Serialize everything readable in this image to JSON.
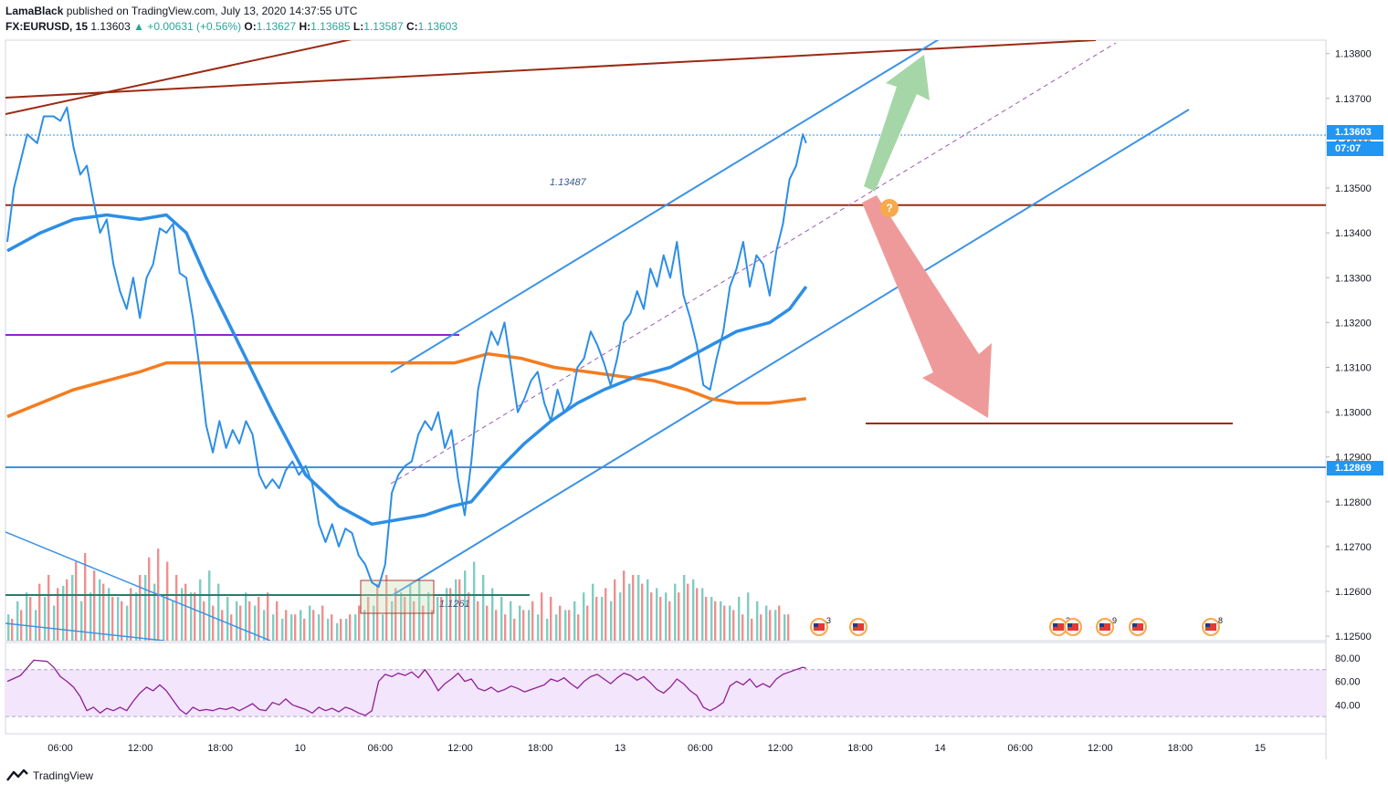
{
  "header": {
    "author": "LamaBlack",
    "published_text": " published on TradingView.com, July 13, 2020 14:37:55 UTC",
    "symbol": "FX:EURUSD, 15",
    "last": "1.13603",
    "change": "▲ +0.00631 (+0.56%)",
    "o_label": "O:",
    "o": "1.13627",
    "h_label": "H:",
    "h": "1.13685",
    "l_label": "L:",
    "l": "1.13587",
    "c_label": "C:",
    "c": "1.13603"
  },
  "footer": {
    "brand": "TradingView",
    "logo_icon": "tradingview-logo-icon"
  },
  "colors": {
    "price_line": "#2d8ee6",
    "ma_fast": "#2d8ee6",
    "ma_slow": "#f57c1f",
    "resistance": "#9c2a12",
    "channel": "#3d93e5",
    "purple_level": "#8e24d9",
    "vol_up": "#7fcdc2",
    "vol_down": "#f08f8f",
    "rsi_line": "#8e1f96",
    "rsi_band": "#f3e5fc",
    "up_arrow": "#a5d6a7",
    "down_arrow": "#ef9a9a",
    "last_badge": "#2196f3"
  },
  "chart_data": {
    "type": "line",
    "symbol": "EURUSD",
    "timeframe": "15",
    "y_ticks": [
      "1.13800",
      "1.13700",
      "1.13600",
      "1.13500",
      "1.13400",
      "1.13300",
      "1.13200",
      "1.13100",
      "1.13000",
      "1.12900",
      "1.12800",
      "1.12700",
      "1.12600",
      "1.12500"
    ],
    "ylim": [
      1.1249,
      1.1383
    ],
    "x_ticks": [
      "06:00",
      "12:00",
      "18:00",
      "10",
      "06:00",
      "12:00",
      "18:00",
      "13",
      "06:00",
      "12:00",
      "18:00",
      "14",
      "06:00",
      "12:00",
      "18:00",
      "15"
    ],
    "price_labels": {
      "last": "1.13603",
      "countdown": "07:07",
      "level": "1.12869",
      "resistance_label": "1.13487",
      "low_label": "1.1261"
    },
    "price_series": [
      [
        0,
        1.1338
      ],
      [
        2,
        1.135
      ],
      [
        4,
        1.1356
      ],
      [
        6,
        1.1362
      ],
      [
        9,
        1.136
      ],
      [
        11,
        1.1366
      ],
      [
        14,
        1.1366
      ],
      [
        16,
        1.1365
      ],
      [
        18,
        1.1368
      ],
      [
        20,
        1.1359
      ],
      [
        22,
        1.1353
      ],
      [
        24,
        1.1355
      ],
      [
        26,
        1.1347
      ],
      [
        28,
        1.134
      ],
      [
        30,
        1.1343
      ],
      [
        32,
        1.1333
      ],
      [
        34,
        1.1327
      ],
      [
        36,
        1.1323
      ],
      [
        38,
        1.133
      ],
      [
        40,
        1.1321
      ],
      [
        42,
        1.133
      ],
      [
        44,
        1.1333
      ],
      [
        46,
        1.1341
      ],
      [
        48,
        1.134
      ],
      [
        50,
        1.1342
      ],
      [
        52,
        1.1331
      ],
      [
        54,
        1.133
      ],
      [
        56,
        1.1321
      ],
      [
        58,
        1.131
      ],
      [
        60,
        1.1297
      ],
      [
        62,
        1.1291
      ],
      [
        64,
        1.1298
      ],
      [
        66,
        1.1292
      ],
      [
        68,
        1.1296
      ],
      [
        70,
        1.1293
      ],
      [
        72,
        1.1298
      ],
      [
        74,
        1.1295
      ],
      [
        76,
        1.1286
      ],
      [
        78,
        1.1283
      ],
      [
        80,
        1.1285
      ],
      [
        82,
        1.1283
      ],
      [
        84,
        1.1287
      ],
      [
        86,
        1.1289
      ],
      [
        88,
        1.1286
      ],
      [
        90,
        1.1288
      ],
      [
        92,
        1.1284
      ],
      [
        94,
        1.1275
      ],
      [
        96,
        1.1271
      ],
      [
        98,
        1.1275
      ],
      [
        100,
        1.127
      ],
      [
        102,
        1.1274
      ],
      [
        104,
        1.1273
      ],
      [
        106,
        1.1268
      ],
      [
        108,
        1.1266
      ],
      [
        110,
        1.1262
      ],
      [
        112,
        1.1261
      ],
      [
        114,
        1.1266
      ],
      [
        116,
        1.1282
      ],
      [
        118,
        1.1286
      ],
      [
        120,
        1.1288
      ],
      [
        122,
        1.1289
      ],
      [
        124,
        1.1295
      ],
      [
        126,
        1.1298
      ],
      [
        128,
        1.1296
      ],
      [
        130,
        1.13
      ],
      [
        132,
        1.1292
      ],
      [
        134,
        1.1296
      ],
      [
        136,
        1.1285
      ],
      [
        138,
        1.1277
      ],
      [
        140,
        1.1289
      ],
      [
        142,
        1.1305
      ],
      [
        144,
        1.1312
      ],
      [
        146,
        1.1318
      ],
      [
        148,
        1.1315
      ],
      [
        150,
        1.132
      ],
      [
        152,
        1.131
      ],
      [
        154,
        1.13
      ],
      [
        156,
        1.1303
      ],
      [
        158,
        1.1307
      ],
      [
        160,
        1.1309
      ],
      [
        162,
        1.1302
      ],
      [
        164,
        1.1298
      ],
      [
        166,
        1.1305
      ],
      [
        168,
        1.13
      ],
      [
        170,
        1.1302
      ],
      [
        172,
        1.131
      ],
      [
        174,
        1.1312
      ],
      [
        176,
        1.1318
      ],
      [
        178,
        1.1315
      ],
      [
        180,
        1.1311
      ],
      [
        182,
        1.1306
      ],
      [
        184,
        1.1312
      ],
      [
        186,
        1.132
      ],
      [
        188,
        1.1322
      ],
      [
        190,
        1.1327
      ],
      [
        192,
        1.1323
      ],
      [
        194,
        1.1332
      ],
      [
        196,
        1.1328
      ],
      [
        198,
        1.1335
      ],
      [
        200,
        1.133
      ],
      [
        202,
        1.1338
      ],
      [
        204,
        1.1326
      ],
      [
        206,
        1.1321
      ],
      [
        208,
        1.1315
      ],
      [
        210,
        1.1306
      ],
      [
        212,
        1.1305
      ],
      [
        214,
        1.1312
      ],
      [
        216,
        1.1318
      ],
      [
        218,
        1.1328
      ],
      [
        220,
        1.1332
      ],
      [
        222,
        1.1338
      ],
      [
        224,
        1.1328
      ],
      [
        226,
        1.1335
      ],
      [
        228,
        1.1333
      ],
      [
        230,
        1.1326
      ],
      [
        232,
        1.1336
      ],
      [
        234,
        1.1342
      ],
      [
        236,
        1.1352
      ],
      [
        238,
        1.1355
      ],
      [
        240,
        1.1362
      ],
      [
        241,
        1.136
      ]
    ],
    "ma_fast_series": [
      [
        0,
        1.1336
      ],
      [
        10,
        1.134
      ],
      [
        20,
        1.1343
      ],
      [
        30,
        1.1344
      ],
      [
        40,
        1.1343
      ],
      [
        48,
        1.1344
      ],
      [
        54,
        1.134
      ],
      [
        60,
        1.133
      ],
      [
        70,
        1.1315
      ],
      [
        80,
        1.13
      ],
      [
        90,
        1.1286
      ],
      [
        100,
        1.1279
      ],
      [
        110,
        1.1275
      ],
      [
        118,
        1.1276
      ],
      [
        126,
        1.1277
      ],
      [
        134,
        1.1279
      ],
      [
        140,
        1.128
      ],
      [
        148,
        1.1287
      ],
      [
        156,
        1.1293
      ],
      [
        164,
        1.1298
      ],
      [
        172,
        1.1302
      ],
      [
        180,
        1.1305
      ],
      [
        190,
        1.1308
      ],
      [
        200,
        1.131
      ],
      [
        210,
        1.1314
      ],
      [
        220,
        1.1318
      ],
      [
        230,
        1.132
      ],
      [
        236,
        1.1323
      ],
      [
        241,
        1.1328
      ]
    ],
    "ma_slow_series": [
      [
        0,
        1.1299
      ],
      [
        10,
        1.1302
      ],
      [
        20,
        1.1305
      ],
      [
        30,
        1.1307
      ],
      [
        40,
        1.1309
      ],
      [
        48,
        1.1311
      ],
      [
        55,
        1.1311
      ],
      [
        70,
        1.1311
      ],
      [
        85,
        1.1311
      ],
      [
        100,
        1.1311
      ],
      [
        115,
        1.1311
      ],
      [
        125,
        1.1311
      ],
      [
        135,
        1.1311
      ],
      [
        145,
        1.1313
      ],
      [
        155,
        1.1312
      ],
      [
        165,
        1.131
      ],
      [
        175,
        1.1309
      ],
      [
        185,
        1.1308
      ],
      [
        195,
        1.1307
      ],
      [
        205,
        1.1305
      ],
      [
        212,
        1.1303
      ],
      [
        220,
        1.1302
      ],
      [
        230,
        1.1302
      ],
      [
        241,
        1.1303
      ]
    ],
    "rsi_ticks": [
      "80.00",
      "60.00",
      "40.00"
    ],
    "rsi_band": [
      70,
      30
    ],
    "rsi_series": [
      [
        0,
        60
      ],
      [
        4,
        65
      ],
      [
        8,
        78
      ],
      [
        12,
        77
      ],
      [
        14,
        72
      ],
      [
        16,
        64
      ],
      [
        18,
        60
      ],
      [
        20,
        55
      ],
      [
        22,
        47
      ],
      [
        24,
        35
      ],
      [
        26,
        38
      ],
      [
        28,
        33
      ],
      [
        30,
        37
      ],
      [
        32,
        35
      ],
      [
        34,
        38
      ],
      [
        36,
        35
      ],
      [
        38,
        43
      ],
      [
        40,
        50
      ],
      [
        42,
        55
      ],
      [
        44,
        52
      ],
      [
        46,
        57
      ],
      [
        48,
        52
      ],
      [
        50,
        44
      ],
      [
        52,
        36
      ],
      [
        54,
        32
      ],
      [
        56,
        38
      ],
      [
        58,
        35
      ],
      [
        60,
        36
      ],
      [
        62,
        35
      ],
      [
        64,
        37
      ],
      [
        66,
        36
      ],
      [
        68,
        38
      ],
      [
        70,
        35
      ],
      [
        72,
        38
      ],
      [
        74,
        41
      ],
      [
        76,
        36
      ],
      [
        78,
        35
      ],
      [
        80,
        42
      ],
      [
        82,
        40
      ],
      [
        84,
        45
      ],
      [
        86,
        40
      ],
      [
        88,
        38
      ],
      [
        90,
        36
      ],
      [
        92,
        33
      ],
      [
        94,
        38
      ],
      [
        96,
        35
      ],
      [
        98,
        37
      ],
      [
        100,
        34
      ],
      [
        102,
        38
      ],
      [
        104,
        36
      ],
      [
        106,
        33
      ],
      [
        108,
        31
      ],
      [
        110,
        35
      ],
      [
        112,
        60
      ],
      [
        114,
        66
      ],
      [
        116,
        64
      ],
      [
        118,
        67
      ],
      [
        120,
        65
      ],
      [
        122,
        68
      ],
      [
        124,
        63
      ],
      [
        126,
        70
      ],
      [
        128,
        62
      ],
      [
        130,
        52
      ],
      [
        132,
        58
      ],
      [
        134,
        62
      ],
      [
        136,
        67
      ],
      [
        138,
        60
      ],
      [
        140,
        62
      ],
      [
        142,
        54
      ],
      [
        144,
        52
      ],
      [
        146,
        55
      ],
      [
        148,
        51
      ],
      [
        150,
        53
      ],
      [
        152,
        56
      ],
      [
        154,
        54
      ],
      [
        156,
        51
      ],
      [
        158,
        53
      ],
      [
        160,
        55
      ],
      [
        162,
        57
      ],
      [
        164,
        62
      ],
      [
        166,
        60
      ],
      [
        168,
        63
      ],
      [
        170,
        58
      ],
      [
        172,
        54
      ],
      [
        174,
        60
      ],
      [
        176,
        64
      ],
      [
        178,
        66
      ],
      [
        180,
        62
      ],
      [
        182,
        58
      ],
      [
        184,
        63
      ],
      [
        186,
        67
      ],
      [
        188,
        65
      ],
      [
        190,
        61
      ],
      [
        192,
        64
      ],
      [
        194,
        59
      ],
      [
        196,
        53
      ],
      [
        198,
        50
      ],
      [
        200,
        55
      ],
      [
        202,
        62
      ],
      [
        204,
        58
      ],
      [
        206,
        52
      ],
      [
        208,
        48
      ],
      [
        210,
        38
      ],
      [
        212,
        35
      ],
      [
        214,
        38
      ],
      [
        216,
        42
      ],
      [
        218,
        56
      ],
      [
        220,
        60
      ],
      [
        222,
        57
      ],
      [
        224,
        62
      ],
      [
        226,
        55
      ],
      [
        228,
        58
      ],
      [
        230,
        55
      ],
      [
        232,
        62
      ],
      [
        234,
        66
      ],
      [
        236,
        68
      ],
      [
        238,
        70
      ],
      [
        240,
        72
      ],
      [
        241,
        71
      ]
    ],
    "volume_up": [
      12,
      18,
      22,
      14,
      20,
      16,
      25,
      30,
      18,
      22,
      28,
      24,
      20,
      16,
      22,
      30,
      26,
      20,
      18,
      24,
      22,
      28,
      32,
      26,
      20,
      18,
      22,
      16,
      14,
      12,
      10,
      12,
      14,
      16,
      12,
      10,
      8,
      10,
      12,
      14,
      16,
      12,
      18,
      22,
      26,
      28,
      22,
      20,
      24,
      28,
      32,
      36,
      30,
      24,
      20,
      18,
      16,
      14,
      12,
      10,
      12,
      14,
      18,
      22,
      26,
      20,
      18,
      22,
      26,
      30,
      28,
      24,
      22,
      26,
      30,
      28,
      24,
      20,
      18,
      16,
      20,
      22,
      18,
      16,
      14,
      12
    ],
    "volume_down": [
      10,
      14,
      20,
      26,
      30,
      24,
      28,
      36,
      40,
      32,
      26,
      20,
      18,
      24,
      30,
      38,
      42,
      36,
      30,
      26,
      22,
      18,
      16,
      14,
      12,
      16,
      18,
      20,
      22,
      18,
      14,
      12,
      10,
      14,
      16,
      12,
      10,
      12,
      16,
      20,
      26,
      30,
      24,
      20,
      18,
      16,
      14,
      20,
      24,
      28,
      22,
      18,
      16,
      14,
      12,
      10,
      14,
      18,
      22,
      20,
      16,
      14,
      12,
      16,
      20,
      24,
      28,
      32,
      30,
      26,
      22,
      20,
      18,
      22,
      26,
      24,
      20,
      18,
      16,
      14,
      12,
      10,
      12,
      14,
      16,
      12
    ]
  }
}
